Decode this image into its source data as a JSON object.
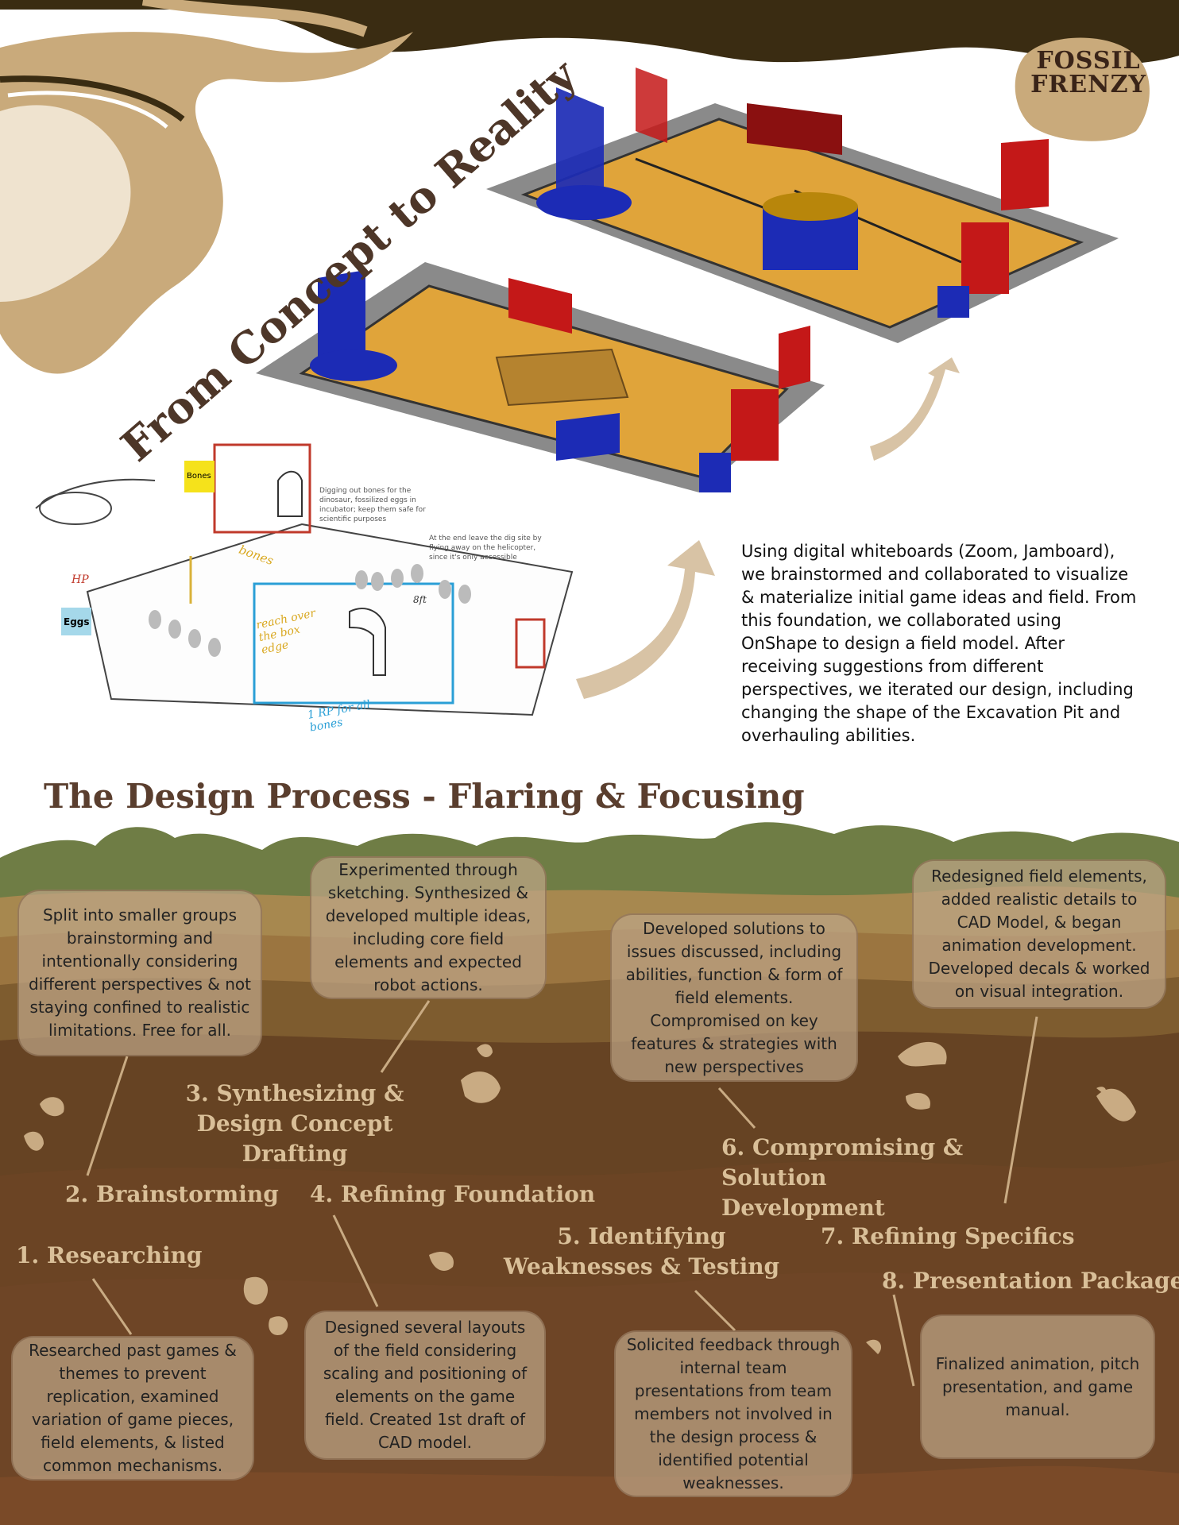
{
  "logo": {
    "line1": "FOSSIL",
    "line2": "FRENZY"
  },
  "header": {
    "title": "From Concept to Reality"
  },
  "sketch": {
    "bones_tag": "Bones",
    "eggs_tag": "Eggs",
    "note1": "Digging out bones for the dinosaur, fossilized eggs in incubator; keep them safe for scientific purposes",
    "note2": "At the end leave the dig site by flying away on the helicopter, since it's only accessible",
    "hand_bones": "bones",
    "hand_reach": "reach over the box edge",
    "hand_rp": "1 RP for all bones",
    "hand_8ft": "8ft",
    "hand_hp": "HP"
  },
  "intro": {
    "text": "Using digital whiteboards (Zoom, Jamboard), we brainstormed and collaborated to visualize & materialize initial game ideas and field. From this foundation, we collaborated using OnShape to design a field model. After receiving suggestions from different perspectives, we iterated our design, including changing the shape of the Excavation Pit and overhauling abilities."
  },
  "process": {
    "title": "The Design Process - Flaring & Focusing",
    "steps": [
      {
        "label": "1. Researching",
        "desc": "Researched past games & themes to prevent replication, examined variation of game pieces, field elements, & listed common mechanisms."
      },
      {
        "label": "2. Brainstorming",
        "desc": "Split into smaller groups brainstorming and intentionally considering different perspectives & not staying confined to realistic limitations. Free for all."
      },
      {
        "label": "3. Synthesizing & Design Concept Drafting",
        "desc": "Experimented through sketching. Synthesized & developed multiple ideas, including core field elements and expected robot actions."
      },
      {
        "label": "4. Refining Foundation",
        "desc": "Designed several layouts of the field considering scaling and positioning of elements on the game field. Created 1st draft of CAD model."
      },
      {
        "label": "5. Identifying Weaknesses & Testing",
        "desc": "Solicited feedback through internal team presentations from team members not involved in the design process & identified potential weaknesses."
      },
      {
        "label": "6. Compromising & Solution Development",
        "desc": "Developed solutions to issues discussed, including abilities, function & form of field elements. Compromised on key features & strategies with new perspectives"
      },
      {
        "label": "7. Refining Specifics",
        "desc": "Redesigned field elements, added realistic details to CAD Model, & began animation development. Developed decals & worked on visual integration."
      },
      {
        "label": "8. Presentation Package",
        "desc": "Finalized animation, pitch presentation, and game manual."
      }
    ]
  },
  "colors": {
    "title_brown": "#5a3e2e",
    "step_text": "#d9bf98",
    "field_yellow": "#e0a43a",
    "team_blue": "#1c2bb5",
    "team_red": "#c41818",
    "dark_band": "#3a2c12"
  }
}
